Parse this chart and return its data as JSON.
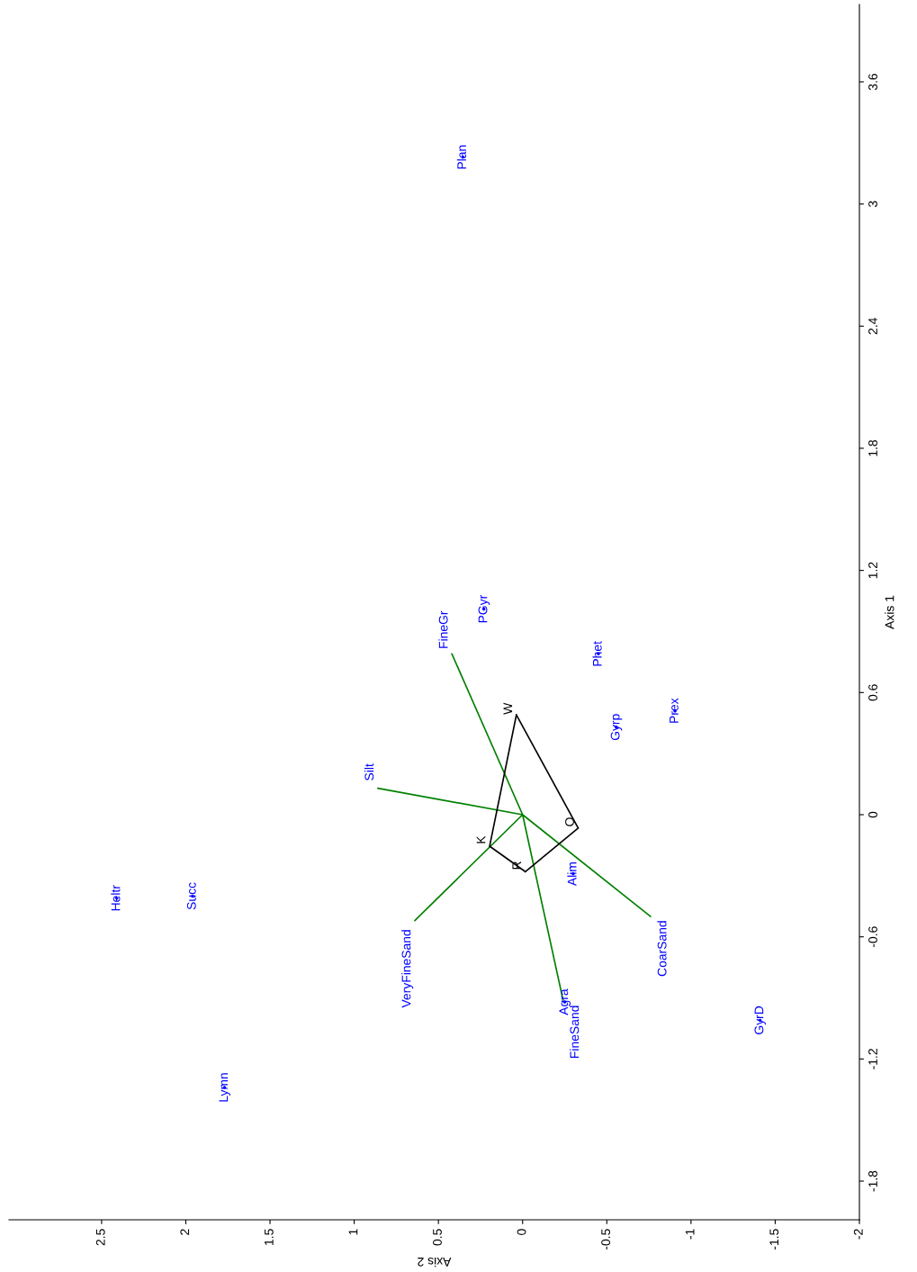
{
  "chart_data": {
    "type": "scatter",
    "xlabel": "Axis 2",
    "ylabel": "Axis 1",
    "xlim": [
      3.05,
      -2.0
    ],
    "ylim": [
      -1.99,
      3.98
    ],
    "xticks": [
      2.5,
      2,
      1.5,
      1,
      0.5,
      0,
      -0.5,
      -1,
      -1.5,
      -2
    ],
    "yticks": [
      -1.8,
      -1.2,
      -0.6,
      0,
      0.6,
      1.2,
      1.8,
      2.4,
      3,
      3.6
    ],
    "grid": false,
    "legend": false,
    "series": [
      {
        "color": "#0000ff",
        "marker": "circle",
        "x": [
          0.355,
          0.23,
          -0.45,
          -0.556,
          -0.905,
          -0.3,
          -1.41,
          2.41,
          1.96,
          1.77,
          -0.25
        ],
        "values": [
          3.23,
          1.01,
          0.79,
          0.43,
          0.51,
          -0.29,
          -1.01,
          -0.41,
          -0.4,
          -1.34,
          -0.92
        ],
        "value_labels": [
          "Plan",
          "PGyr",
          "Phet",
          "Gyrp",
          "Prex",
          "Alim",
          "GyrD",
          "Heltr",
          "Succ",
          "Lymn",
          "Agra"
        ]
      },
      {
        "type": "line",
        "color": "#008000",
        "x": [
          0,
          0.42,
          0,
          0.86,
          0,
          0.64,
          0,
          -0.76,
          0,
          -0.24
        ],
        "values": [
          0,
          0.79,
          0,
          0.13,
          0,
          -0.52,
          0,
          -0.5,
          0,
          -0.91
        ],
        "value_labels": [
          null,
          "FineGr",
          null,
          "Silt",
          null,
          "VeryFineSand",
          null,
          "CoarSand",
          null,
          "FineSand"
        ]
      },
      {
        "type": "line",
        "color": "#000000",
        "x": [
          0.037,
          -0.33,
          null,
          -0.33,
          -0.016,
          null,
          -0.016,
          0.196,
          null,
          0.196,
          0.037
        ],
        "values": [
          0.49,
          -0.066,
          null,
          -0.066,
          -0.28,
          null,
          -0.28,
          -0.155,
          null,
          -0.155,
          0.49
        ],
        "value_labels": [
          "W",
          "O",
          null,
          null,
          "R",
          null,
          null,
          "K",
          null,
          null,
          null
        ]
      }
    ]
  }
}
